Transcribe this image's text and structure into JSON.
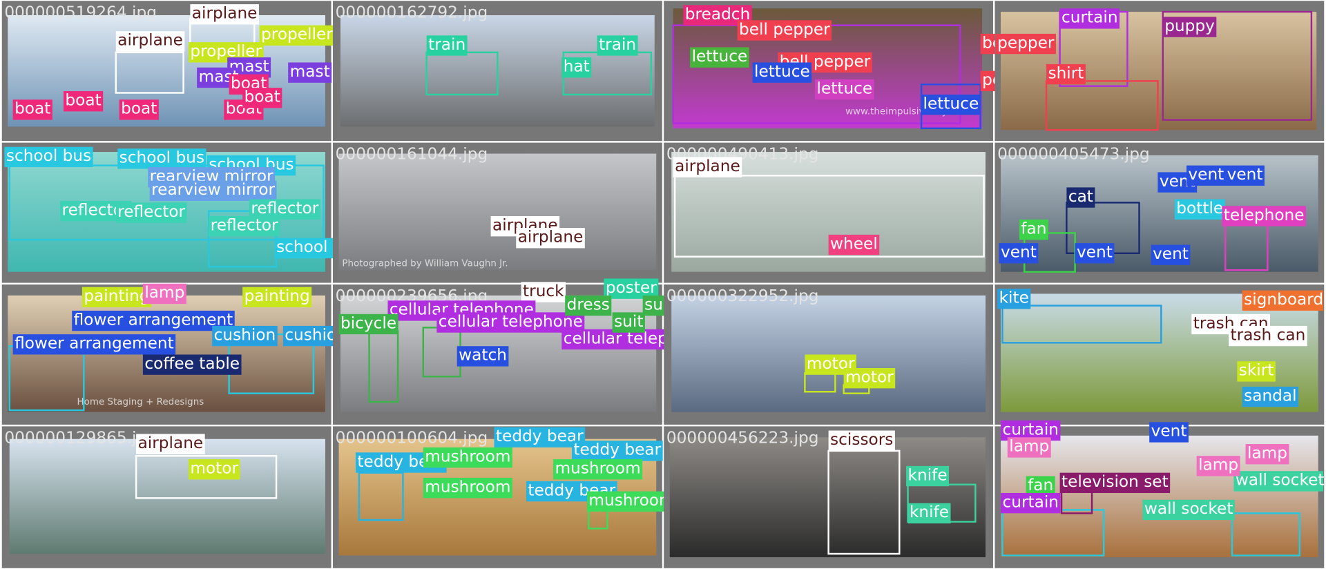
{
  "tiles": [
    {
      "filename": "000000519264.jpg",
      "labels": [
        "airplane",
        "airplane",
        "propeller",
        "propeller",
        "mast",
        "mast",
        "mast",
        "boat",
        "boat",
        "boat",
        "boat",
        "boat",
        "boat"
      ]
    },
    {
      "filename": "000000162792.jpg",
      "labels": [
        "train",
        "train",
        "hat"
      ]
    },
    {
      "labels": [
        "breadch",
        "bell pepper",
        "lettuce",
        "bell pepper",
        "lettuce",
        "lettuce",
        "bell pepper",
        "pepper",
        "lettuce"
      ],
      "image_text": "www.theimpulsivebuy.com"
    },
    {
      "labels": [
        "curtain",
        "pepper",
        "puppy",
        "shirt"
      ]
    },
    {
      "labels": [
        "school bus",
        "school bus",
        "school bus",
        "rearview mirror",
        "rearview mirror",
        "reflector",
        "reflector",
        "reflector",
        "reflector",
        "school bus"
      ]
    },
    {
      "filename": "000000161044.jpg",
      "labels": [
        "airplane",
        "airplane"
      ],
      "image_text": "Photographed by William Vaughn Jr."
    },
    {
      "filename": "000000490413.jpg",
      "labels": [
        "airplane",
        "wheel"
      ]
    },
    {
      "filename": "000000405473.jpg",
      "labels": [
        "vent",
        "vent",
        "vent",
        "cat",
        "bottle",
        "telephone",
        "fan",
        "vent",
        "vent",
        "vent"
      ]
    },
    {
      "labels": [
        "painting",
        "lamp",
        "painting",
        "flower arrangement",
        "flower arrangement",
        "cushion",
        "cushion",
        "coffee table"
      ],
      "image_text": "Home Staging + Redesigns"
    },
    {
      "filename": "000000239656.jpg",
      "labels": [
        "truck",
        "poster",
        "cellular telephone",
        "cellular telephone",
        "cellular telephone",
        "bicycle",
        "dress",
        "suit",
        "suit",
        "watch"
      ]
    },
    {
      "filename": "000000322952.jpg",
      "labels": [
        "motor",
        "motor"
      ]
    },
    {
      "labels": [
        "kite",
        "signboard",
        "trash can",
        "trash can",
        "skirt",
        "sandal"
      ]
    },
    {
      "filename": "000000129865.jpg",
      "labels": [
        "airplane",
        "motor"
      ]
    },
    {
      "filename": "000000100604.jpg",
      "labels": [
        "teddy bear",
        "teddy bear",
        "teddy bear",
        "mushroom",
        "mushroom",
        "mushroom",
        "teddy bear",
        "mushroom"
      ]
    },
    {
      "filename": "000000456223.jpg",
      "labels": [
        "scissors",
        "knife",
        "knife"
      ]
    },
    {
      "labels": [
        "curtain",
        "vent",
        "lamp",
        "lamp",
        "fan",
        "television set",
        "curtain",
        "wall socket",
        "wall socket",
        "lamp"
      ]
    }
  ]
}
